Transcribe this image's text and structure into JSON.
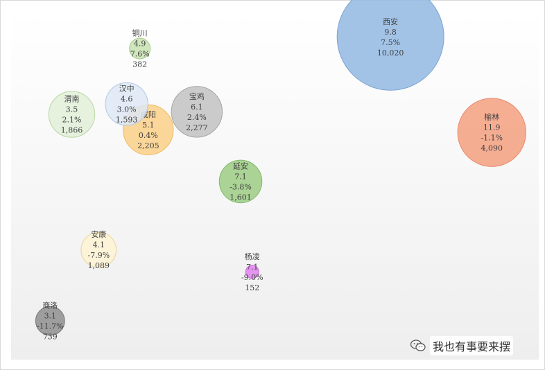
{
  "chart_data": {
    "type": "bubble",
    "title": "",
    "xlabel": "",
    "ylabel": "",
    "xlim": [
      0,
      100
    ],
    "ylim": [
      -15,
      12
    ],
    "grid": false,
    "points": [
      {
        "name": "西安",
        "x": 71.9,
        "y": 10.0,
        "size": 10020,
        "label1": "9.8",
        "label2": "7.5%",
        "label3": "10,020",
        "color": "#93b8e2",
        "stroke": "#7aa3d4"
      },
      {
        "name": "榆林",
        "x": 91.1,
        "y": 2.6,
        "size": 4090,
        "label1": "11.9",
        "label2": "-1.1%",
        "label3": "4,090",
        "color": "#f4a080",
        "stroke": "#e8896a"
      },
      {
        "name": "铜川",
        "x": 24.4,
        "y": 9.1,
        "size": 382,
        "label1": "4.9",
        "label2": "7.6%",
        "label3": "382",
        "color": "#c8e2b0",
        "stroke": "#a9cc90"
      },
      {
        "name": "汉中",
        "x": 21.9,
        "y": 4.8,
        "size": 1593,
        "label1": "4.6",
        "label2": "3.0%",
        "label3": "1,593",
        "color": "#dde7f5",
        "stroke": "#b2c7e6"
      },
      {
        "name": "渭南",
        "x": 11.5,
        "y": 4.0,
        "size": 1866,
        "label1": "3.5",
        "label2": "2.1%",
        "label3": "1,866",
        "color": "#e2efd8",
        "stroke": "#b9d6a4"
      },
      {
        "name": "宝鸡",
        "x": 35.2,
        "y": 4.2,
        "size": 2277,
        "label1": "6.1",
        "label2": "2.4%",
        "label3": "2,277",
        "color": "#c2c2c2",
        "stroke": "#a6a6a6"
      },
      {
        "name": "咸阳",
        "x": 26.0,
        "y": 2.8,
        "size": 2205,
        "label1": "5.1",
        "label2": "0.4%",
        "label3": "2,205",
        "color": "#fcd088",
        "stroke": "#f1b860"
      },
      {
        "name": "延安",
        "x": 43.5,
        "y": -1.2,
        "size": 1601,
        "label1": "7.1",
        "label2": "-3.8%",
        "label3": "1,601",
        "color": "#9ccc84",
        "stroke": "#84b86c"
      },
      {
        "name": "安康",
        "x": 16.6,
        "y": -6.5,
        "size": 1089,
        "label1": "4.1",
        "label2": "-7.9%",
        "label3": "1,089",
        "color": "#fdf2d4",
        "stroke": "#e8d59a"
      },
      {
        "name": "杨凌",
        "x": 45.7,
        "y": -8.2,
        "size": 152,
        "label1": "7.1",
        "label2": "-9.0%",
        "label3": "152",
        "color": "#e084ee",
        "stroke": "#c96ad8"
      },
      {
        "name": "商洛",
        "x": 7.4,
        "y": -12.0,
        "size": 739,
        "label1": "3.1",
        "label2": "-11.7%",
        "label3": "739",
        "color": "#8f8f8f",
        "stroke": "#777777"
      }
    ]
  },
  "watermark": {
    "text": "我也有事要来摆",
    "icon": "wechat-icon"
  }
}
